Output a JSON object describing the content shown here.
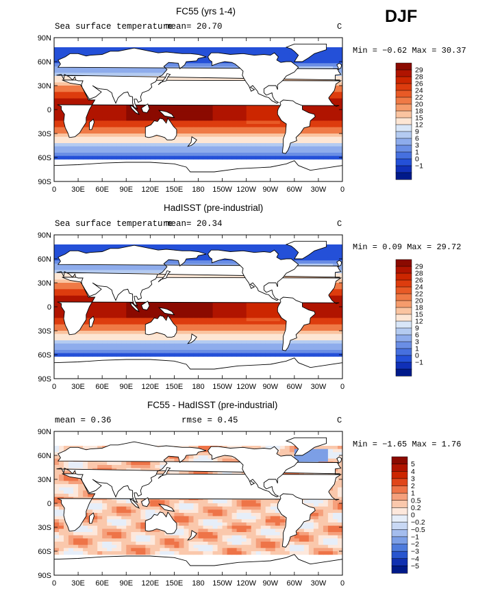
{
  "season_label": "DJF",
  "tick_labels": {
    "lon": [
      "0",
      "30E",
      "60E",
      "90E",
      "120E",
      "150E",
      "180",
      "150W",
      "120W",
      "90W",
      "60W",
      "30W",
      "0"
    ],
    "lat": [
      "90N",
      "60N",
      "30N",
      "0",
      "30S",
      "60S",
      "90S"
    ]
  },
  "panels": [
    {
      "title": "FC55 (yrs 1-4)",
      "left_text": "Sea surface temperature",
      "stat_text": "mean=  20.70",
      "unit": "C",
      "min_label": "Min =",
      "min_value": "−0.62",
      "max_label": "Max =",
      "max_value": "30.37",
      "mode": "sst",
      "colorbar": {
        "labels": [
          "29",
          "28",
          "26",
          "24",
          "22",
          "20",
          "18",
          "15",
          "12",
          "9",
          "6",
          "3",
          "1",
          "0",
          "−1"
        ],
        "colors": [
          "#8b0a00",
          "#b01400",
          "#cc2600",
          "#dd3c0e",
          "#e85a26",
          "#ef7a46",
          "#f59c6c",
          "#fac4a0",
          "#fde6d4",
          "#d8e6f8",
          "#b4cbf1",
          "#8eacec",
          "#6a8ee5",
          "#4670df",
          "#2450d8",
          "#1030b8",
          "#001a8a"
        ]
      }
    },
    {
      "title": "HadISST (pre-industrial)",
      "left_text": "Sea surface temperature",
      "stat_text": "mean=  20.34",
      "unit": "C",
      "min_label": "Min =",
      "min_value": "0.09",
      "max_label": "Max =",
      "max_value": "29.72",
      "mode": "sst",
      "colorbar": {
        "labels": [
          "29",
          "28",
          "26",
          "24",
          "22",
          "20",
          "18",
          "15",
          "12",
          "9",
          "6",
          "3",
          "1",
          "0",
          "−1"
        ],
        "colors": [
          "#8b0a00",
          "#b01400",
          "#cc2600",
          "#dd3c0e",
          "#e85a26",
          "#ef7a46",
          "#f59c6c",
          "#fac4a0",
          "#fde6d4",
          "#d8e6f8",
          "#b4cbf1",
          "#8eacec",
          "#6a8ee5",
          "#4670df",
          "#2450d8",
          "#1030b8",
          "#001a8a"
        ]
      }
    },
    {
      "title": "FC55 - HadISST (pre-industrial)",
      "left_text": "mean =   0.36",
      "stat_text": "rmse =   0.45",
      "unit": "C",
      "min_label": "Min =",
      "min_value": "−1.65",
      "max_label": "Max =",
      "max_value": "1.76",
      "mode": "diff",
      "colorbar": {
        "labels": [
          "5",
          "4",
          "3",
          "2",
          "1",
          "0.5",
          "0.2",
          "0",
          "−0.2",
          "−0.5",
          "−1",
          "−2",
          "−3",
          "−4",
          "−5"
        ],
        "colors": [
          "#8b0a00",
          "#b01400",
          "#cc2600",
          "#e0461a",
          "#ee7448",
          "#f5a07c",
          "#fac8ac",
          "#fde8dc",
          "#e6eef9",
          "#c8d8f4",
          "#a4bdee",
          "#7c9fe6",
          "#4e7bdc",
          "#2855cf",
          "#1030b0",
          "#001a88"
        ]
      }
    }
  ]
}
